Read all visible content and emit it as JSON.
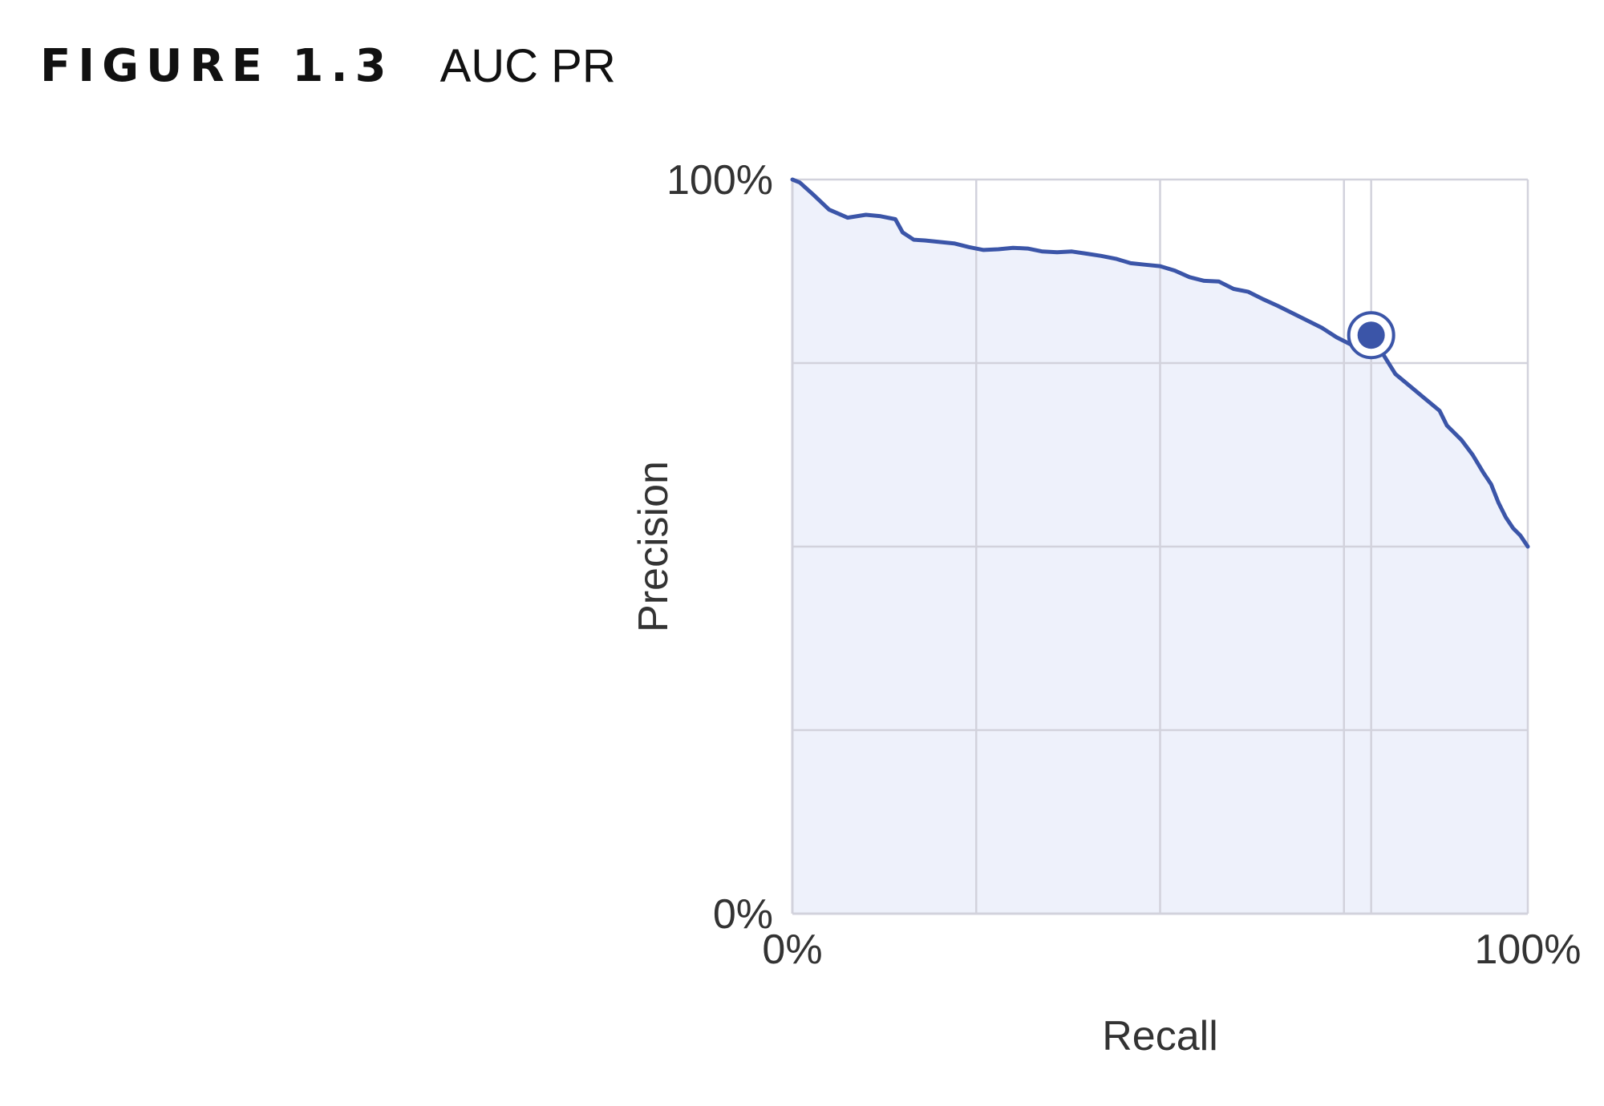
{
  "figure": {
    "number": "FIGURE 1.3",
    "caption": "AUC PR"
  },
  "chart_data": {
    "type": "area",
    "title": "AUC PR",
    "xlabel": "Recall",
    "ylabel": "Precision",
    "xlim": [
      0,
      100
    ],
    "ylim": [
      0,
      100
    ],
    "x_tick_labels": [
      "0%",
      "100%"
    ],
    "y_tick_labels": [
      "0%",
      "100%"
    ],
    "x_gridlines": [
      25,
      50,
      75,
      100
    ],
    "y_gridlines": [
      25,
      50,
      75,
      100
    ],
    "grid": true,
    "legend": "none",
    "line_color": "#3b55a8",
    "fill_color": "#eef1fb",
    "grid_color": "#d2d2dc",
    "highlight_guide_x": 78.7,
    "x": [
      0,
      1,
      3,
      5,
      7.5,
      10,
      12,
      14,
      15,
      16.5,
      18,
      20,
      22,
      24,
      26,
      28,
      30,
      32,
      34,
      36,
      38,
      40,
      42,
      44,
      46,
      48,
      50,
      52,
      54,
      56,
      58,
      60,
      62,
      64,
      66,
      68,
      70,
      72,
      74,
      76,
      78.7,
      82,
      85,
      88,
      89,
      91,
      92.5,
      94,
      95,
      96,
      97,
      98,
      99,
      100
    ],
    "y": [
      100,
      99.6,
      97.8,
      95.9,
      94.8,
      95.2,
      95,
      94.6,
      92.8,
      91.8,
      91.7,
      91.5,
      91.3,
      90.8,
      90.4,
      90.5,
      90.7,
      90.6,
      90.2,
      90.1,
      90.2,
      89.9,
      89.6,
      89.2,
      88.6,
      88.4,
      88.2,
      87.6,
      86.7,
      86.2,
      86.1,
      85.1,
      84.7,
      83.7,
      82.8,
      81.8,
      80.8,
      79.8,
      78.5,
      77.5,
      78.8,
      73.5,
      71,
      68.5,
      66.5,
      64.5,
      62.5,
      60,
      58.5,
      56,
      54,
      52.5,
      51.5,
      50
    ],
    "highlight_point": {
      "x": 78.7,
      "y": 78.8
    }
  }
}
